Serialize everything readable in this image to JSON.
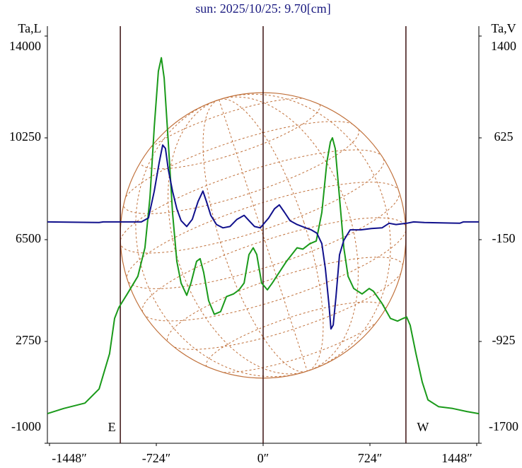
{
  "chart_data": {
    "type": "line",
    "title": "sun: 2025/10/25: 9.70[cm]",
    "y_label": "Ta,L",
    "y2_label": "Ta,V",
    "xlim": [
      -1448,
      1448
    ],
    "xticks": [
      {
        "value": -1448,
        "label": "-1448″"
      },
      {
        "value": -724,
        "label": "-724″"
      },
      {
        "value": 0,
        "label": "0″"
      },
      {
        "value": 724,
        "label": "724″"
      },
      {
        "value": 1448,
        "label": "1448″"
      }
    ],
    "ylim": [
      -1000,
      14000
    ],
    "yticks": [
      -1000,
      2750,
      6500,
      10250,
      14000
    ],
    "y2lim": [
      -1700,
      1400
    ],
    "y2ticks": [
      -1700,
      -925,
      -150,
      625,
      1400
    ],
    "vlines": [
      -968,
      0,
      968
    ],
    "vline_labels": [
      "E",
      null,
      "W"
    ],
    "series": [
      {
        "name": "Ta,L",
        "color": "#1a9a1a",
        "x": [
          -1462,
          -1352,
          -1208,
          -1112,
          -1041,
          -1007,
          -978,
          -921,
          -849,
          -801,
          -767,
          -738,
          -710,
          -690,
          -671,
          -643,
          -614,
          -585,
          -556,
          -518,
          -489,
          -451,
          -427,
          -403,
          -369,
          -331,
          -288,
          -249,
          -201,
          -163,
          -129,
          -96,
          -67,
          -43,
          -10,
          29,
          62,
          110,
          158,
          230,
          269,
          316,
          360,
          398,
          432,
          456,
          470,
          489,
          518,
          547,
          576,
          614,
          671,
          719,
          748,
          806,
          863,
          911,
          949,
          973,
          997,
          1036,
          1079,
          1117,
          1189,
          1285,
          1381,
          1462
        ],
        "values": [
          90,
          280,
          480,
          1000,
          2300,
          3600,
          4000,
          4500,
          5150,
          6200,
          8050,
          10650,
          12700,
          13200,
          12450,
          10100,
          7500,
          5700,
          4900,
          4450,
          4900,
          5700,
          5800,
          5300,
          4250,
          3750,
          3850,
          4400,
          4500,
          4650,
          4900,
          5950,
          6200,
          5950,
          4900,
          4650,
          4900,
          5300,
          5700,
          6200,
          6150,
          6350,
          6450,
          7500,
          9350,
          10100,
          10250,
          9850,
          8050,
          6200,
          5150,
          4700,
          4500,
          4700,
          4600,
          4150,
          3600,
          3500,
          3600,
          3650,
          3350,
          2300,
          1250,
          600,
          350,
          280,
          170,
          90
        ]
      },
      {
        "name": "Ta,V",
        "color": "#10108c",
        "axis": "y2",
        "x": [
          -1462,
          -1112,
          -1084,
          -825,
          -777,
          -738,
          -705,
          -681,
          -662,
          -643,
          -614,
          -585,
          -556,
          -518,
          -480,
          -441,
          -408,
          -384,
          -355,
          -316,
          -273,
          -225,
          -177,
          -129,
          -96,
          -58,
          -19,
          0,
          38,
          77,
          110,
          144,
          182,
          230,
          288,
          326,
          364,
          398,
          422,
          446,
          460,
          475,
          494,
          518,
          547,
          590,
          662,
          734,
          806,
          854,
          901,
          973,
          1021,
          1093,
          1333,
          1357,
          1462
        ],
        "values": [
          -15,
          -20,
          -15,
          -15,
          15,
          220,
          435,
          570,
          545,
          385,
          220,
          85,
          -5,
          -50,
          5,
          140,
          220,
          140,
          35,
          -35,
          -60,
          -50,
          5,
          35,
          -5,
          -50,
          -60,
          -35,
          15,
          85,
          115,
          60,
          -5,
          -35,
          -60,
          -75,
          -100,
          -180,
          -370,
          -640,
          -830,
          -800,
          -585,
          -265,
          -155,
          -75,
          -75,
          -65,
          -60,
          -25,
          -35,
          -25,
          -15,
          -20,
          -25,
          -15,
          -15
        ]
      }
    ]
  }
}
